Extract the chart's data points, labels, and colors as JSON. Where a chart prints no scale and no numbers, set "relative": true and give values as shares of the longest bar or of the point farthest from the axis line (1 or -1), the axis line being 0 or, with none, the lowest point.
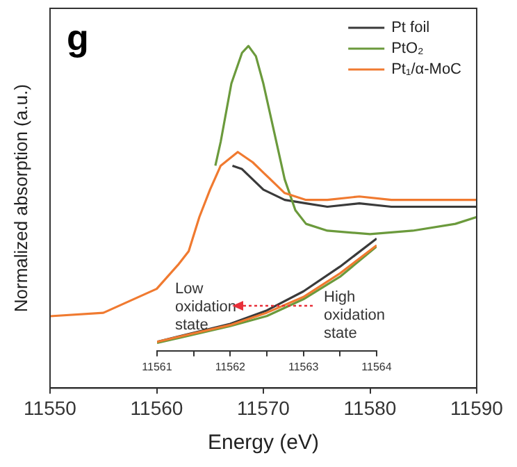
{
  "chart_data": [
    {
      "type": "line",
      "title": "g",
      "xlabel": "Energy (eV)",
      "ylabel": "Normalized absorption (a.u.)",
      "relative": true,
      "xlim": [
        11550,
        11590
      ],
      "xticks": [
        11550,
        11560,
        11570,
        11580,
        11590
      ],
      "legend": "top right",
      "grid": false,
      "series": [
        {
          "name": "Pt foil",
          "color": "#3a3a3a",
          "x": [
            11567.1,
            11568,
            11570,
            11572,
            11574,
            11576,
            11579,
            11582,
            11586,
            11590
          ],
          "values": [
            0.65,
            0.64,
            0.58,
            0.55,
            0.54,
            0.53,
            0.54,
            0.53,
            0.53,
            0.53
          ]
        },
        {
          "name": "PtO₂",
          "color": "#6b9a3c",
          "x": [
            11565.5,
            11566,
            11567,
            11568,
            11568.6,
            11569.3,
            11570,
            11571,
            11572,
            11573,
            11574,
            11576,
            11580,
            11584,
            11588,
            11590
          ],
          "values": [
            0.65,
            0.72,
            0.89,
            0.98,
            1,
            0.97,
            0.89,
            0.75,
            0.61,
            0.52,
            0.48,
            0.46,
            0.45,
            0.46,
            0.48,
            0.5
          ]
        },
        {
          "name": "Pt₁/α-MoC",
          "color": "#f07a30",
          "x": [
            11550,
            11555,
            11560,
            11562,
            11563,
            11564,
            11565,
            11566,
            11567.6,
            11569,
            11570,
            11572,
            11574,
            11576,
            11579,
            11582,
            11586,
            11590
          ],
          "values": [
            0.21,
            0.22,
            0.29,
            0.36,
            0.4,
            0.5,
            0.58,
            0.65,
            0.69,
            0.66,
            0.63,
            0.57,
            0.55,
            0.55,
            0.56,
            0.55,
            0.55,
            0.55
          ]
        }
      ]
    },
    {
      "type": "line",
      "relative": true,
      "xlim": [
        11561,
        11564
      ],
      "xticks": [
        11561,
        {
          "value": 11561.5,
          "label": null
        },
        11562,
        {
          "value": 11562.5,
          "label": null
        },
        11563,
        {
          "value": 11563.5,
          "label": null
        },
        11564
      ],
      "tick_labels": "x",
      "grid": false,
      "annotations": [
        "Low\noxidation\nstate",
        "High\noxidation\nstate"
      ],
      "series": [
        {
          "color": "#3a3a3a",
          "x": [
            11561,
            11562,
            11562.5,
            11563,
            11563.5,
            11564
          ],
          "values": [
            0.08,
            0.24,
            0.36,
            0.53,
            0.75,
            1
          ]
        },
        {
          "color": "#6b9a3c",
          "x": [
            11561,
            11562,
            11562.5,
            11563,
            11563.5,
            11564
          ],
          "values": [
            0.07,
            0.22,
            0.31,
            0.46,
            0.66,
            0.93
          ]
        },
        {
          "color": "#f07a30",
          "x": [
            11561,
            11562,
            11562.5,
            11563,
            11563.5,
            11564
          ],
          "values": [
            0.08,
            0.23,
            0.34,
            0.48,
            0.69,
            0.94
          ]
        }
      ]
    }
  ]
}
